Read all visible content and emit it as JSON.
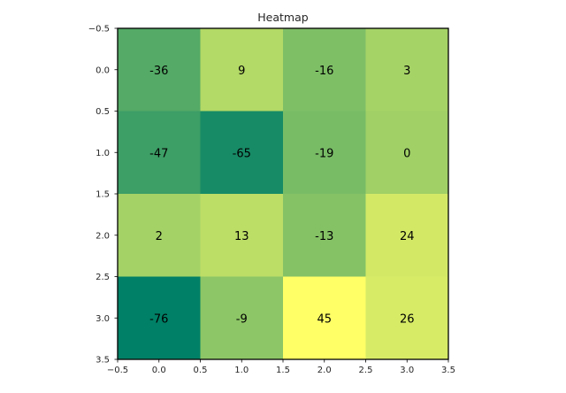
{
  "chart_data": {
    "type": "heatmap",
    "title": "Heatmap",
    "colormap": "summer",
    "color_range": [
      -76,
      45
    ],
    "colors": {
      "low": "#008066",
      "high": "#ffff66",
      "frame": "#000000",
      "cell_text": "#000000"
    },
    "xlim": [
      -0.5,
      3.5
    ],
    "ylim": [
      3.5,
      -0.5
    ],
    "x_ticks": [
      "−0.5",
      "0.0",
      "0.5",
      "1.0",
      "1.5",
      "2.0",
      "2.5",
      "3.0",
      "3.5"
    ],
    "y_ticks": [
      "−0.5",
      "0.0",
      "0.5",
      "1.0",
      "1.5",
      "2.0",
      "2.5",
      "3.0",
      "3.5"
    ],
    "x_tick_values": [
      -0.5,
      0,
      0.5,
      1,
      1.5,
      2,
      2.5,
      3,
      3.5
    ],
    "y_tick_values": [
      -0.5,
      0,
      0.5,
      1,
      1.5,
      2,
      2.5,
      3,
      3.5
    ],
    "values": [
      [
        -36,
        9,
        -16,
        3
      ],
      [
        -47,
        -65,
        -19,
        0
      ],
      [
        2,
        13,
        -13,
        24
      ],
      [
        -76,
        -9,
        45,
        26
      ]
    ]
  }
}
